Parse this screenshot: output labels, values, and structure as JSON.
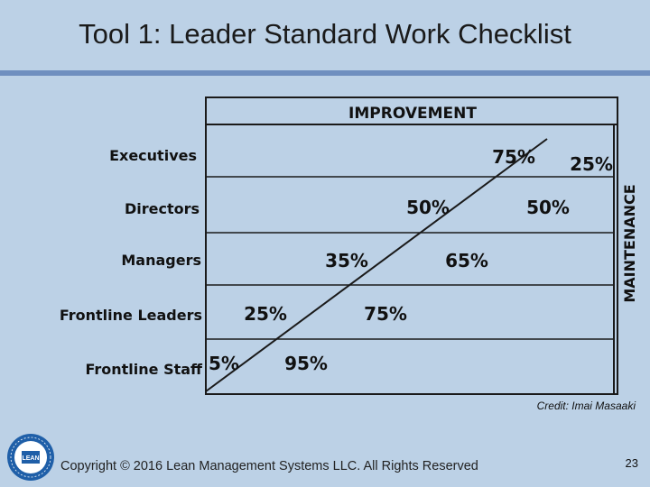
{
  "slide": {
    "title": "Tool 1: Leader Standard Work Checklist",
    "credit": "Credit: Imai Masaaki",
    "copyright": "Copyright © 2016 Lean Management Systems LLC. All Rights Reserved",
    "page_number": "23"
  },
  "diagram": {
    "top_label": "IMPROVEMENT",
    "right_label": "MAINTENANCE",
    "rows": [
      {
        "role": "Executives",
        "improvement": "75%",
        "maintenance": "25%"
      },
      {
        "role": "Directors",
        "improvement": "50%",
        "maintenance": "50%"
      },
      {
        "role": "Managers",
        "improvement": "35%",
        "maintenance": "65%"
      },
      {
        "role": "Frontline Leaders",
        "improvement": "25%",
        "maintenance": "75%"
      },
      {
        "role": "Frontline Staff",
        "improvement": "5%",
        "maintenance": "95%"
      }
    ]
  },
  "logo": {
    "text": "LEAN",
    "ring_color": "#1f5fa8"
  }
}
